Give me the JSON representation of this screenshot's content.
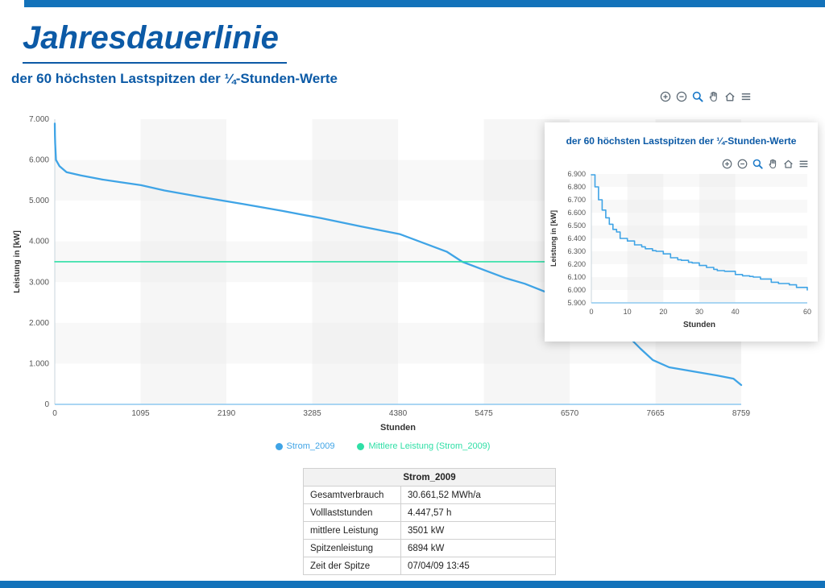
{
  "colors": {
    "brand_blue": "#1372ba",
    "heading_blue": "#0c5aa6",
    "series_blue": "#3fa4e6",
    "series_green": "#2fdfa6"
  },
  "header": {
    "title": "Jahresdauerlinie",
    "subtitle": "der 60 höchsten Lastspitzen der ¼-Stunden-Werte"
  },
  "toolbar": {
    "icons": [
      "zoom-in-icon",
      "zoom-out-icon",
      "box-zoom-icon",
      "pan-icon",
      "home-icon",
      "menu-icon"
    ]
  },
  "inset": {
    "title": "der 60 höchsten Lastspitzen der ¼-Stunden-Werte"
  },
  "legend": [
    {
      "label": "Strom_2009",
      "color": "#3fa4e6"
    },
    {
      "label": "Mittlere Leistung (Strom_2009)",
      "color": "#2fdfa6"
    }
  ],
  "chart_data": [
    {
      "type": "line",
      "title": "Jahresdauerlinie",
      "xlabel": "Stunden",
      "ylabel": "Leistung in [kW]",
      "xlim": [
        0,
        8759
      ],
      "ylim": [
        0,
        7000
      ],
      "xticks": [
        0,
        1095,
        2190,
        3285,
        4380,
        5475,
        6570,
        7665,
        8759
      ],
      "xticklabels": [
        "0",
        "1095",
        "2190",
        "3285",
        "4380",
        "5475",
        "6570",
        "7665",
        "8759"
      ],
      "yticks": [
        0,
        1000,
        2000,
        3000,
        4000,
        5000,
        6000,
        7000
      ],
      "yticklabels": [
        "0",
        "1.000",
        "2.000",
        "3.000",
        "4.000",
        "5.000",
        "6.000",
        "7.000"
      ],
      "grid": false,
      "legend_position": "bottom",
      "series": [
        {
          "name": "Strom_2009",
          "color": "#3fa4e6",
          "width": 2.3,
          "x": [
            0,
            2,
            5,
            15,
            60,
            150,
            330,
            600,
            850,
            1100,
            1400,
            1900,
            2400,
            2900,
            3400,
            3900,
            4400,
            5000,
            5200,
            5500,
            5750,
            6000,
            6250,
            6500,
            6750,
            7000,
            7250,
            7475,
            7630,
            7840,
            8140,
            8450,
            8660,
            8759
          ],
          "y": [
            6894,
            6600,
            6400,
            6000,
            5850,
            5700,
            5620,
            5520,
            5450,
            5380,
            5250,
            5080,
            4920,
            4750,
            4570,
            4370,
            4180,
            3750,
            3500,
            3280,
            3100,
            2960,
            2770,
            2580,
            2400,
            2150,
            1800,
            1365,
            1090,
            910,
            810,
            710,
            630,
            475
          ]
        },
        {
          "name": "Mittlere Leistung (Strom_2009)",
          "color": "#2fdfa6",
          "width": 1.6,
          "x": [
            0,
            8759
          ],
          "y": [
            3501,
            3501
          ]
        }
      ]
    },
    {
      "type": "line",
      "title": "der 60 höchsten Lastspitzen der ¼-Stunden-Werte",
      "xlabel": "Stunden",
      "ylabel": "Leistung in [kW]",
      "xlim": [
        0,
        60
      ],
      "ylim": [
        5900,
        6900
      ],
      "xticks": [
        0,
        10,
        20,
        30,
        40,
        60
      ],
      "xticklabels": [
        "0",
        "10",
        "20",
        "30",
        "40",
        "60"
      ],
      "yticks": [
        5900,
        6000,
        6100,
        6200,
        6300,
        6400,
        6500,
        6600,
        6700,
        6800,
        6900
      ],
      "yticklabels": [
        "5.900",
        "6.000",
        "6.100",
        "6.200",
        "6.300",
        "6.400",
        "6.500",
        "6.600",
        "6.700",
        "6.800",
        "6.900"
      ],
      "grid": false,
      "legend_position": "none",
      "series": [
        {
          "name": "Strom_2009",
          "color": "#3fa4e6",
          "width": 1.6,
          "step": true,
          "x": [
            0,
            1,
            2,
            3,
            4,
            5,
            6,
            7,
            8,
            10,
            12,
            14,
            15,
            17,
            18,
            20,
            22,
            24,
            25,
            27,
            28,
            30,
            32,
            34,
            35,
            37,
            40,
            42,
            44,
            45,
            47,
            50,
            52,
            55,
            57,
            60
          ],
          "y": [
            6894,
            6800,
            6700,
            6620,
            6560,
            6510,
            6470,
            6450,
            6400,
            6380,
            6350,
            6335,
            6320,
            6305,
            6300,
            6280,
            6250,
            6235,
            6230,
            6215,
            6210,
            6190,
            6175,
            6160,
            6150,
            6145,
            6120,
            6110,
            6105,
            6100,
            6085,
            6060,
            6050,
            6040,
            6020,
            6000
          ]
        }
      ]
    }
  ],
  "table": {
    "header": "Strom_2009",
    "rows": [
      {
        "label": "Gesamtverbrauch",
        "value": "30.661,52 MWh/a"
      },
      {
        "label": "Volllaststunden",
        "value": "4.447,57 h"
      },
      {
        "label": "mittlere Leistung",
        "value": "3501 kW"
      },
      {
        "label": "Spitzenleistung",
        "value": "6894 kW"
      },
      {
        "label": "Zeit der Spitze",
        "value": "07/04/09 13:45"
      }
    ]
  }
}
